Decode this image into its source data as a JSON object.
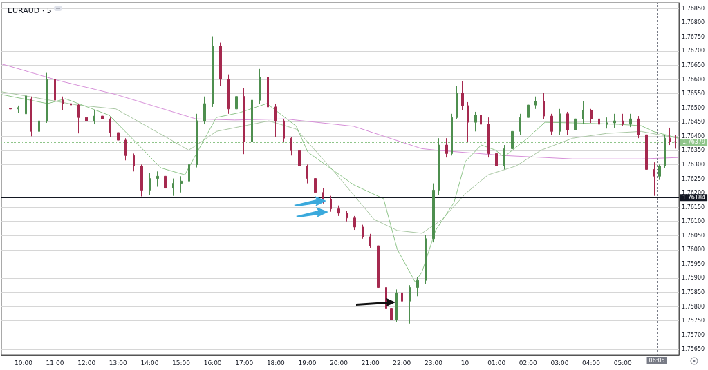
{
  "chart_data": {
    "type": "candlestick",
    "title": "EURAUD · 5",
    "x": [
      "--01-09T09:35",
      "--01-09T09:50",
      "--01-09T10:05",
      "--01-09T10:15",
      "--01-09T10:30",
      "--01-09T10:45",
      "--01-09T11:00",
      "--01-09T11:15",
      "--01-09T11:30",
      "--01-09T11:45",
      "--01-09T12:00",
      "--01-09T12:15",
      "--01-09T12:30",
      "--01-09T12:45",
      "--01-09T13:00",
      "--01-09T13:15",
      "--01-09T13:30",
      "--01-09T13:45",
      "--01-09T14:00",
      "--01-09T14:15",
      "--01-09T14:30",
      "--01-09T14:45",
      "--01-09T15:00",
      "--01-09T15:15",
      "--01-09T15:30",
      "--01-09T15:45",
      "--01-09T16:00",
      "--01-09T16:15",
      "--01-09T16:30",
      "--01-09T16:45",
      "--01-09T17:00",
      "--01-09T17:15",
      "--01-09T17:30",
      "--01-09T17:45",
      "--01-09T18:00",
      "--01-09T18:15",
      "--01-09T18:30",
      "--01-09T18:45",
      "--01-09T19:00",
      "--01-09T19:15",
      "--01-09T19:30",
      "--01-09T19:45",
      "--01-09T20:00",
      "--01-09T20:15",
      "--01-09T20:30",
      "--01-09T20:45",
      "--01-09T21:00",
      "--01-09T21:15",
      "--01-09T21:30",
      "--01-09T21:40",
      "--01-09T21:50",
      "--01-09T22:00",
      "--01-09T22:15",
      "--01-09T22:30",
      "--01-09T22:45",
      "--01-09T23:00",
      "--01-09T23:10",
      "--01-09T23:25",
      "--01-09T23:35",
      "--01-09T23:45",
      "--01-09T23:55",
      "--01-10T00:05",
      "--01-10T00:20",
      "--01-10T00:30",
      "--01-10T00:45",
      "--01-10T01:00",
      "--01-10T01:15",
      "--01-10T01:30",
      "--01-10T01:45",
      "--01-10T02:00",
      "--01-10T02:15",
      "--01-10T02:30",
      "--01-10T02:45",
      "--01-10T03:00",
      "--01-10T03:15",
      "--01-10T03:30",
      "--01-10T03:45",
      "--01-10T04:00",
      "--01-10T04:15",
      "--01-10T04:30",
      "--01-10T04:45",
      "--01-10T05:00",
      "--01-10T05:15",
      "--01-10T05:30",
      "--01-10T05:45",
      "--01-10T06:00",
      "--01-10T06:10",
      "--01-10T06:20",
      "--01-10T06:30",
      "--01-10T06:40"
    ],
    "ohlc": [
      [
        1.76498,
        1.7651,
        1.76486,
        1.76496
      ],
      [
        1.76496,
        1.76508,
        1.76483,
        1.76501
      ],
      [
        1.76479,
        1.76557,
        1.76471,
        1.76542
      ],
      [
        1.76532,
        1.7654,
        1.764,
        1.76417
      ],
      [
        1.76417,
        1.76491,
        1.76405,
        1.76454
      ],
      [
        1.76454,
        1.76623,
        1.76447,
        1.76601
      ],
      [
        1.76601,
        1.76613,
        1.76515,
        1.76527
      ],
      [
        1.76527,
        1.7654,
        1.76491,
        1.76515
      ],
      [
        1.76515,
        1.76535,
        1.76486,
        1.7651
      ],
      [
        1.7651,
        1.76515,
        1.7641,
        1.76466
      ],
      [
        1.76466,
        1.76479,
        1.7641,
        1.76454
      ],
      [
        1.76454,
        1.76491,
        1.76442,
        1.76471
      ],
      [
        1.76471,
        1.76483,
        1.76437,
        1.76461
      ],
      [
        1.76461,
        1.76466,
        1.76398,
        1.76413
      ],
      [
        1.76413,
        1.76422,
        1.76373,
        1.76386
      ],
      [
        1.76386,
        1.76393,
        1.76315,
        1.76332
      ],
      [
        1.76332,
        1.76339,
        1.76276,
        1.76295
      ],
      [
        1.76295,
        1.763,
        1.76188,
        1.7621
      ],
      [
        1.7621,
        1.76271,
        1.76193,
        1.76251
      ],
      [
        1.76251,
        1.76276,
        1.76222,
        1.76259
      ],
      [
        1.76259,
        1.76266,
        1.76188,
        1.76217
      ],
      [
        1.76217,
        1.76251,
        1.7619,
        1.76234
      ],
      [
        1.76234,
        1.76259,
        1.76202,
        1.76242
      ],
      [
        1.76242,
        1.76332,
        1.76234,
        1.763
      ],
      [
        1.763,
        1.76479,
        1.7629,
        1.76454
      ],
      [
        1.76454,
        1.7654,
        1.76442,
        1.76515
      ],
      [
        1.76515,
        1.76752,
        1.76503,
        1.76718
      ],
      [
        1.76718,
        1.7673,
        1.76576,
        1.76601
      ],
      [
        1.76601,
        1.76618,
        1.76479,
        1.76496
      ],
      [
        1.76496,
        1.76564,
        1.76486,
        1.7654
      ],
      [
        1.7654,
        1.76569,
        1.76337,
        1.76381
      ],
      [
        1.76381,
        1.7654,
        1.76369,
        1.76527
      ],
      [
        1.76527,
        1.76637,
        1.76515,
        1.76608
      ],
      [
        1.76608,
        1.7665,
        1.76491,
        1.76503
      ],
      [
        1.76503,
        1.76515,
        1.76398,
        1.76454
      ],
      [
        1.76454,
        1.76461,
        1.76381,
        1.76393
      ],
      [
        1.76393,
        1.76398,
        1.76332,
        1.76349
      ],
      [
        1.76349,
        1.76364,
        1.76283,
        1.76295
      ],
      [
        1.76295,
        1.763,
        1.76234,
        1.76251
      ],
      [
        1.76251,
        1.76259,
        1.76188,
        1.76202
      ],
      [
        1.76202,
        1.76217,
        1.76163,
        1.76178
      ],
      [
        1.76178,
        1.7619,
        1.76134,
        1.76144
      ],
      [
        1.76144,
        1.76156,
        1.76119,
        1.76129
      ],
      [
        1.76129,
        1.76136,
        1.761,
        1.76112
      ],
      [
        1.76112,
        1.76119,
        1.7607,
        1.7608
      ],
      [
        1.7608,
        1.76088,
        1.76039,
        1.76046
      ],
      [
        1.76046,
        1.76056,
        1.76007,
        1.76014
      ],
      [
        1.76014,
        1.76026,
        1.75855,
        1.75867
      ],
      [
        1.75867,
        1.75875,
        1.75782,
        1.75794
      ],
      [
        1.75794,
        1.75806,
        1.75726,
        1.75753
      ],
      [
        1.75753,
        1.7586,
        1.75745,
        1.75848
      ],
      [
        1.75848,
        1.7586,
        1.75806,
        1.75819
      ],
      [
        1.75819,
        1.75875,
        1.7574,
        1.75867
      ],
      [
        1.75867,
        1.75904,
        1.75836,
        1.75892
      ],
      [
        1.75892,
        1.76051,
        1.7588,
        1.76039
      ],
      [
        1.76039,
        1.76234,
        1.76026,
        1.7621
      ],
      [
        1.7621,
        1.76393,
        1.76193,
        1.76369
      ],
      [
        1.76369,
        1.76393,
        1.76325,
        1.76339
      ],
      [
        1.76339,
        1.76479,
        1.76332,
        1.76466
      ],
      [
        1.76466,
        1.76576,
        1.76461,
        1.76552
      ],
      [
        1.76552,
        1.76593,
        1.76491,
        1.76508
      ],
      [
        1.76508,
        1.7652,
        1.76381,
        1.76449
      ],
      [
        1.76449,
        1.76486,
        1.76417,
        1.76474
      ],
      [
        1.76474,
        1.7652,
        1.7643,
        1.76442
      ],
      [
        1.76442,
        1.76466,
        1.76325,
        1.76339
      ],
      [
        1.76339,
        1.76381,
        1.76254,
        1.76295
      ],
      [
        1.76295,
        1.76369,
        1.76283,
        1.76356
      ],
      [
        1.76356,
        1.7643,
        1.76349,
        1.76417
      ],
      [
        1.76417,
        1.76479,
        1.76405,
        1.76466
      ],
      [
        1.76466,
        1.76571,
        1.76461,
        1.7651
      ],
      [
        1.7651,
        1.7654,
        1.76496,
        1.76523
      ],
      [
        1.76523,
        1.76552,
        1.76461,
        1.76471
      ],
      [
        1.76471,
        1.76479,
        1.76405,
        1.76417
      ],
      [
        1.76417,
        1.76496,
        1.76405,
        1.76479
      ],
      [
        1.76479,
        1.76486,
        1.76405,
        1.76422
      ],
      [
        1.76422,
        1.76479,
        1.76413,
        1.76461
      ],
      [
        1.76461,
        1.76523,
        1.76442,
        1.76491
      ],
      [
        1.76491,
        1.76496,
        1.76447,
        1.76461
      ],
      [
        1.76461,
        1.76479,
        1.7643,
        1.76442
      ],
      [
        1.76442,
        1.76466,
        1.76427,
        1.76447
      ],
      [
        1.76447,
        1.76479,
        1.7643,
        1.76454
      ],
      [
        1.76454,
        1.76479,
        1.76437,
        1.76442
      ],
      [
        1.76442,
        1.76479,
        1.76432,
        1.76461
      ],
      [
        1.76461,
        1.76471,
        1.76393,
        1.76405
      ],
      [
        1.76405,
        1.7643,
        1.76259,
        1.76283
      ],
      [
        1.76283,
        1.76308,
        1.7619,
        1.76259
      ],
      [
        1.76259,
        1.763,
        1.76246,
        1.76295
      ],
      [
        1.76295,
        1.76405,
        1.76288,
        1.76393
      ],
      [
        1.76393,
        1.7643,
        1.76369,
        1.76381
      ],
      [
        1.76381,
        1.76405,
        1.76356,
        1.76379
      ]
    ],
    "series": [
      {
        "type": "line",
        "color": "#d68fd8",
        "x": [
          "--01-09T09:18",
          "--01-09T11:07",
          "--01-09T12:56",
          "--01-09T15:28",
          "--01-09T16:42",
          "--01-09T18:17",
          "--01-09T20:28",
          "--01-09T22:38",
          "--01-09T23:04",
          "--01-10T01:14",
          "--01-10T03:25",
          "--01-10T05:35",
          "--01-10T06:46"
        ],
        "values": [
          1.76655,
          1.76596,
          1.76547,
          1.76461,
          1.76457,
          1.76461,
          1.76435,
          1.76356,
          1.76351,
          1.76332,
          1.7632,
          1.7632,
          1.76325
        ]
      },
      {
        "type": "line",
        "color": "#a9c7a3",
        "x": [
          "--01-09T09:18",
          "--01-09T11:42",
          "--01-09T12:56",
          "--01-09T14:35",
          "--01-09T15:14",
          "--01-09T15:23",
          "--01-09T16:07",
          "--01-09T17:47",
          "--01-09T18:39",
          "--01-09T19:53",
          "--01-09T21:07",
          "--01-09T21:51",
          "--01-09T22:38",
          "--01-09T23:17",
          "--01-10T00:01",
          "--01-10T00:44",
          "--01-10T01:37",
          "--01-10T02:25",
          "--01-10T03:25",
          "--01-10T04:30",
          "--01-10T05:35",
          "--01-10T06:46"
        ],
        "values": [
          1.76557,
          1.7651,
          1.76496,
          1.76393,
          1.76351,
          1.76361,
          1.76417,
          1.76454,
          1.76425,
          1.76271,
          1.76107,
          1.76068,
          1.76058,
          1.76107,
          1.76198,
          1.76264,
          1.76295,
          1.76351,
          1.76393,
          1.7641,
          1.76417,
          1.76393
        ]
      },
      {
        "type": "line",
        "color": "#8fc58a",
        "x": [
          "--01-09T09:18",
          "--01-09T10:46",
          "--01-09T11:20",
          "--01-09T12:43",
          "--01-09T14:22",
          "--01-09T15:07",
          "--01-09T15:40",
          "--01-09T16:07",
          "--01-09T16:51",
          "--01-09T17:43",
          "--01-09T18:00",
          "--01-09T18:39",
          "--01-09T19:01",
          "--01-09T20:28",
          "--01-09T21:25",
          "--01-09T21:51",
          "--01-09T22:25",
          "--01-09T22:38",
          "--01-09T23:04",
          "--01-09T23:39",
          "--01-10T00:01",
          "--01-10T00:31",
          "--01-10T00:58",
          "--01-10T01:14",
          "--01-10T01:59",
          "--01-10T02:32",
          "--01-10T03:25",
          "--01-10T04:52",
          "--01-10T05:35",
          "--01-10T05:58",
          "--01-10T06:46"
        ],
        "values": [
          1.76547,
          1.76515,
          1.76532,
          1.76474,
          1.76288,
          1.76264,
          1.76376,
          1.76466,
          1.76483,
          1.76515,
          1.76491,
          1.76435,
          1.76344,
          1.76229,
          1.7618,
          1.76002,
          1.75887,
          1.75921,
          1.76068,
          1.76166,
          1.76312,
          1.76369,
          1.76351,
          1.76327,
          1.76393,
          1.76449,
          1.76447,
          1.76442,
          1.76437,
          1.76417,
          1.76393
        ]
      }
    ],
    "xlim": [
      "--01-09T09:18",
      "--01-10T06:47"
    ],
    "xticks": [
      {
        "value": "--01-09T10:00",
        "label": "10:00"
      },
      {
        "value": "--01-09T11:00",
        "label": "11:00"
      },
      {
        "value": "--01-09T12:00",
        "label": "12:00"
      },
      {
        "value": "--01-09T13:00",
        "label": "13:00"
      },
      {
        "value": "--01-09T14:00",
        "label": "14:00"
      },
      {
        "value": "--01-09T15:00",
        "label": "15:00"
      },
      {
        "value": "--01-09T16:00",
        "label": "16:00"
      },
      {
        "value": "--01-09T17:00",
        "label": "17:00"
      },
      {
        "value": "--01-09T18:00",
        "label": "18:00"
      },
      {
        "value": "--01-09T19:00",
        "label": "19:00"
      },
      {
        "value": "--01-09T20:00",
        "label": "20:00"
      },
      {
        "value": "--01-09T21:00",
        "label": "21:00"
      },
      {
        "value": "--01-09T22:00",
        "label": "22:00"
      },
      {
        "value": "--01-09T23:00",
        "label": "23:00"
      },
      {
        "value": "--01-10T00:00",
        "label": "10"
      },
      {
        "value": "--01-10T01:00",
        "label": "01:00"
      },
      {
        "value": "--01-10T02:00",
        "label": "02:00"
      },
      {
        "value": "--01-10T03:00",
        "label": "03:00"
      },
      {
        "value": "--01-10T04:00",
        "label": "04:00"
      },
      {
        "value": "--01-10T05:00",
        "label": "05:00"
      }
    ],
    "ylim": [
      1.7563,
      1.7687
    ],
    "yticks": [
      {
        "value": 1.7565,
        "label": "1.75650"
      },
      {
        "value": 1.757,
        "label": "1.75700"
      },
      {
        "value": 1.7575,
        "label": "1.75750"
      },
      {
        "value": 1.758,
        "label": "1.75800"
      },
      {
        "value": 1.7585,
        "label": "1.75850"
      },
      {
        "value": 1.759,
        "label": "1.75900"
      },
      {
        "value": 1.7595,
        "label": "1.75950"
      },
      {
        "value": 1.76,
        "label": "1.76000"
      },
      {
        "value": 1.7605,
        "label": "1.76050"
      },
      {
        "value": 1.761,
        "label": "1.76100"
      },
      {
        "value": 1.7615,
        "label": "1.76150"
      },
      {
        "value": 1.762,
        "label": "1.76200"
      },
      {
        "value": 1.7625,
        "label": "1.76250"
      },
      {
        "value": 1.763,
        "label": "1.76300"
      },
      {
        "value": 1.7635,
        "label": "1.76350"
      },
      {
        "value": 1.764,
        "label": "1.76400"
      },
      {
        "value": 1.7645,
        "label": "1.76450"
      },
      {
        "value": 1.765,
        "label": "1.76500"
      },
      {
        "value": 1.7655,
        "label": "1.76550"
      },
      {
        "value": 1.766,
        "label": "1.76600"
      },
      {
        "value": 1.7665,
        "label": "1.76650"
      },
      {
        "value": 1.767,
        "label": "1.76700"
      },
      {
        "value": 1.7675,
        "label": "1.76750"
      },
      {
        "value": 1.768,
        "label": "1.76800"
      },
      {
        "value": 1.7685,
        "label": "1.76850"
      }
    ],
    "ref_lines": [
      {
        "axis": "y",
        "value": 1.76184,
        "label": "1.76184",
        "color": "#131722",
        "line_style": "solid"
      },
      {
        "axis": "y",
        "value": 1.76379,
        "label": "1.76379",
        "color": "#8fc58a",
        "line_style": "dotted"
      },
      {
        "axis": "x",
        "value": "--01-10T06:05",
        "label": "06:05",
        "color": "#787b86",
        "line_style": "dotted"
      }
    ],
    "grid": "y"
  }
}
